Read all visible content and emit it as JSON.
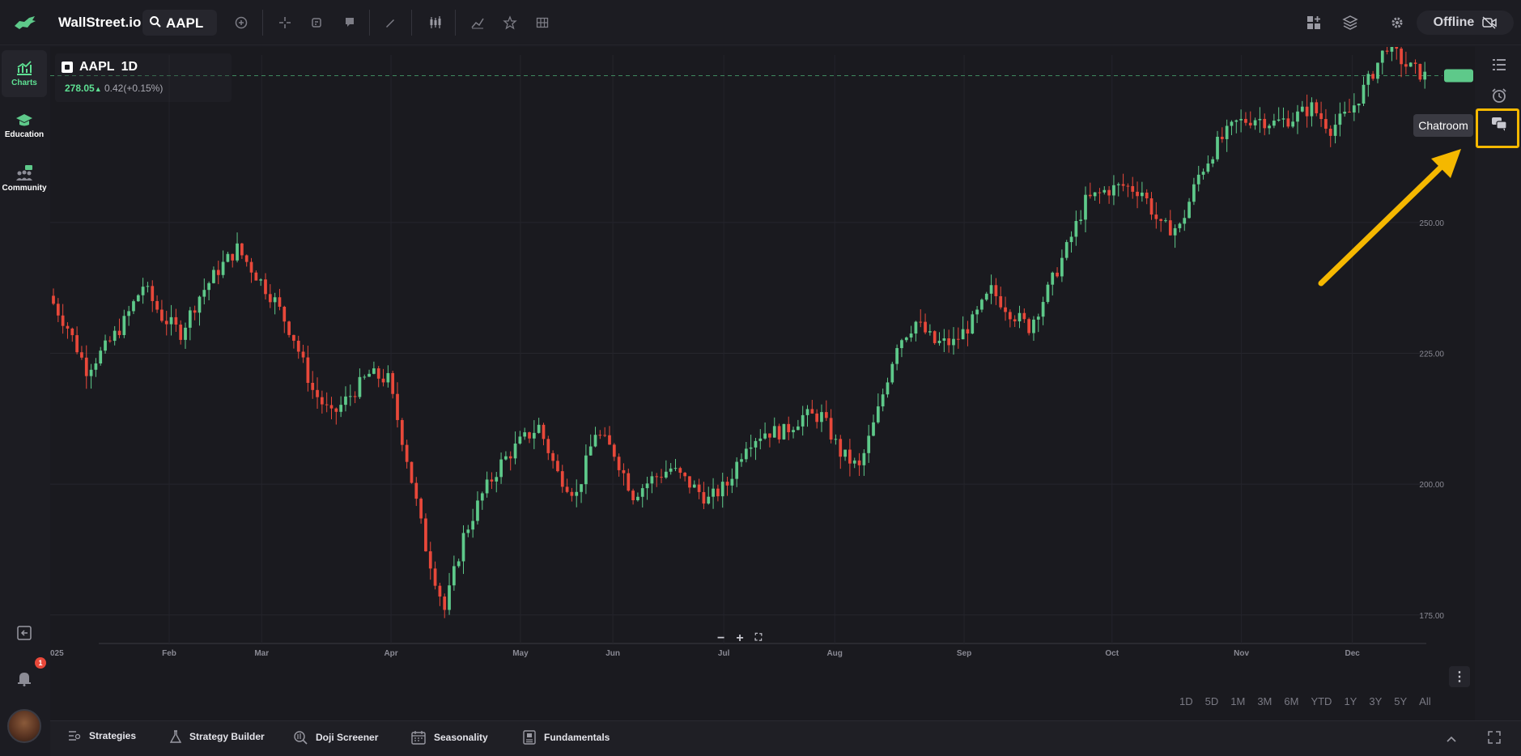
{
  "app": {
    "brand": "WallStreet.io",
    "search_value": "AAPL",
    "status": "Offline"
  },
  "left_nav": [
    {
      "label": "Charts",
      "icon": "chart-icon",
      "active": true
    },
    {
      "label": "Education",
      "icon": "graduation-cap-icon",
      "active": false
    },
    {
      "label": "Community",
      "icon": "community-icon",
      "active": false
    }
  ],
  "notifications": {
    "count": "1"
  },
  "legend": {
    "symbol": "AAPL",
    "interval": "1D",
    "price": "278.05",
    "change": "0.42(+0.15%)"
  },
  "tooltip": {
    "text": "Chatroom"
  },
  "bottom_nav": [
    {
      "label": "Strategies",
      "icon": "strategies-icon"
    },
    {
      "label": "Strategy Builder",
      "icon": "flask-icon"
    },
    {
      "label": "Doji Screener",
      "icon": "screener-icon"
    },
    {
      "label": "Seasonality",
      "icon": "calendar-icon"
    },
    {
      "label": "Fundamentals",
      "icon": "document-icon"
    }
  ],
  "ranges": [
    "1D",
    "5D",
    "1M",
    "3M",
    "6M",
    "YTD",
    "1Y",
    "3Y",
    "5Y",
    "All"
  ],
  "colors": {
    "up": "#5ec98a",
    "down": "#e8483a",
    "accent": "#5ee093",
    "highlight": "#f5b800"
  },
  "chart_data": {
    "type": "candlestick",
    "symbol": "AAPL",
    "interval": "1D",
    "x_tick_labels": [
      "025",
      "Feb",
      "Mar",
      "Apr",
      "May",
      "Jun",
      "Jul",
      "Aug",
      "Sep",
      "Oct",
      "Nov",
      "Dec"
    ],
    "y_tick_labels": [
      "250.00",
      "225.00",
      "200.00",
      "175.00"
    ],
    "ylim": [
      166,
      282
    ],
    "last_price": 278.05,
    "grid": true,
    "close_path": [
      {
        "month": "Jan",
        "close": 236
      },
      {
        "month": "Jan",
        "close": 230
      },
      {
        "month": "Jan",
        "close": 222
      },
      {
        "month": "Jan",
        "close": 226
      },
      {
        "month": "Jan",
        "close": 231
      },
      {
        "month": "Jan",
        "close": 238
      },
      {
        "month": "Feb",
        "close": 232
      },
      {
        "month": "Feb",
        "close": 229
      },
      {
        "month": "Feb",
        "close": 236
      },
      {
        "month": "Feb",
        "close": 241
      },
      {
        "month": "Feb",
        "close": 245
      },
      {
        "month": "Mar",
        "close": 240
      },
      {
        "month": "Mar",
        "close": 235
      },
      {
        "month": "Mar",
        "close": 228
      },
      {
        "month": "Mar",
        "close": 218
      },
      {
        "month": "Mar",
        "close": 213
      },
      {
        "month": "Mar",
        "close": 217
      },
      {
        "month": "Mar",
        "close": 221
      },
      {
        "month": "Apr",
        "close": 220
      },
      {
        "month": "Apr",
        "close": 205
      },
      {
        "month": "Apr",
        "close": 188
      },
      {
        "month": "Apr",
        "close": 176
      },
      {
        "month": "Apr",
        "close": 190
      },
      {
        "month": "Apr",
        "close": 198
      },
      {
        "month": "Apr",
        "close": 204
      },
      {
        "month": "May",
        "close": 208
      },
      {
        "month": "May",
        "close": 211
      },
      {
        "month": "May",
        "close": 202
      },
      {
        "month": "May",
        "close": 198
      },
      {
        "month": "May",
        "close": 210
      },
      {
        "month": "Jun",
        "close": 206
      },
      {
        "month": "Jun",
        "close": 198
      },
      {
        "month": "Jun",
        "close": 201
      },
      {
        "month": "Jun",
        "close": 203
      },
      {
        "month": "Jun",
        "close": 200
      },
      {
        "month": "Jun",
        "close": 197
      },
      {
        "month": "Jul",
        "close": 200
      },
      {
        "month": "Jul",
        "close": 208
      },
      {
        "month": "Jul",
        "close": 210
      },
      {
        "month": "Jul",
        "close": 210
      },
      {
        "month": "Jul",
        "close": 213
      },
      {
        "month": "Jul",
        "close": 213
      },
      {
        "month": "Aug",
        "close": 206
      },
      {
        "month": "Aug",
        "close": 203
      },
      {
        "month": "Aug",
        "close": 214
      },
      {
        "month": "Aug",
        "close": 227
      },
      {
        "month": "Aug",
        "close": 231
      },
      {
        "month": "Aug",
        "close": 227
      },
      {
        "month": "Aug",
        "close": 227
      },
      {
        "month": "Sep",
        "close": 231
      },
      {
        "month": "Sep",
        "close": 237
      },
      {
        "month": "Sep",
        "close": 233
      },
      {
        "month": "Sep",
        "close": 230
      },
      {
        "month": "Sep",
        "close": 237
      },
      {
        "month": "Sep",
        "close": 245
      },
      {
        "month": "Sep",
        "close": 254
      },
      {
        "month": "Sep",
        "close": 256
      },
      {
        "month": "Oct",
        "close": 257
      },
      {
        "month": "Oct",
        "close": 256
      },
      {
        "month": "Oct",
        "close": 249
      },
      {
        "month": "Oct",
        "close": 249
      },
      {
        "month": "Oct",
        "close": 259
      },
      {
        "month": "Oct",
        "close": 265
      },
      {
        "month": "Oct",
        "close": 269
      },
      {
        "month": "Nov",
        "close": 270
      },
      {
        "month": "Nov",
        "close": 269
      },
      {
        "month": "Nov",
        "close": 270
      },
      {
        "month": "Nov",
        "close": 272
      },
      {
        "month": "Nov",
        "close": 268
      },
      {
        "month": "Nov",
        "close": 271
      },
      {
        "month": "Dec",
        "close": 277
      },
      {
        "month": "Dec",
        "close": 284
      },
      {
        "month": "Dec",
        "close": 280
      },
      {
        "month": "Dec",
        "close": 278
      }
    ]
  }
}
